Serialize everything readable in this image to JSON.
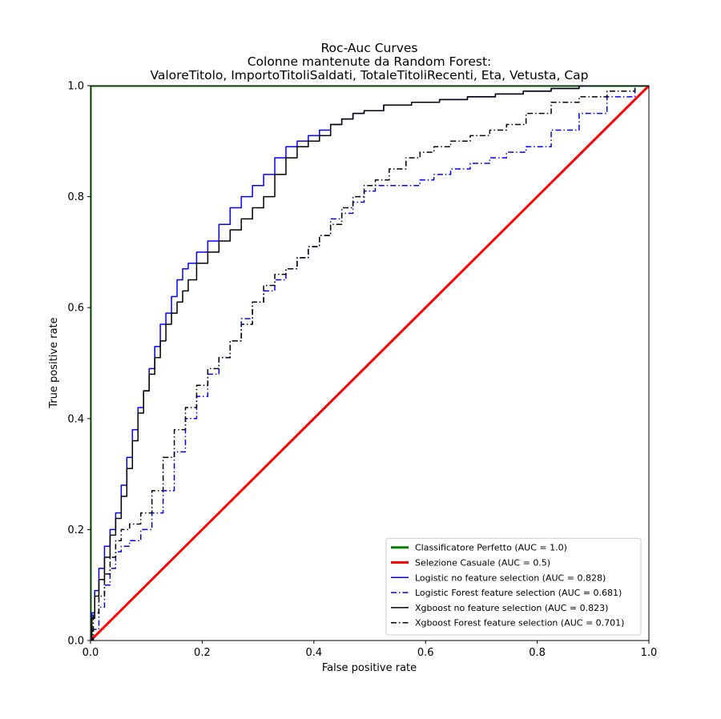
{
  "chart_data": {
    "type": "line",
    "title_lines": [
      "Roc-Auc Curves",
      "Colonne mantenute da Random Forest:",
      "ValoreTitolo, ImportoTitoliSaldati, TotaleTitoliRecenti, Eta, Vetusta, Cap"
    ],
    "xlabel": "False positive rate",
    "ylabel": "True positive rate",
    "xlim": [
      0,
      1
    ],
    "ylim": [
      0,
      1
    ],
    "xticks": [
      0,
      0.2,
      0.4,
      0.6,
      0.8,
      1.0
    ],
    "yticks": [
      0,
      0.2,
      0.4,
      0.6,
      0.8,
      1.0
    ],
    "xtick_labels": [
      "0.0",
      "0.2",
      "0.4",
      "0.6",
      "0.8",
      "1.0"
    ],
    "ytick_labels": [
      "0.0",
      "0.2",
      "0.4",
      "0.6",
      "0.8",
      "1.0"
    ],
    "grid": false,
    "legend_position": "lower-right",
    "series": [
      {
        "name": "Classificatore Perfetto (AUC = 1.0)",
        "color": "#008000",
        "style": "solid",
        "width": 3,
        "x": [
          0,
          0,
          1
        ],
        "y": [
          0,
          1,
          1
        ]
      },
      {
        "name": "Selezione Casuale (AUC = 0.5)",
        "color": "#ff0000",
        "style": "solid",
        "width": 3,
        "x": [
          0,
          1
        ],
        "y": [
          0,
          1
        ]
      },
      {
        "name": "Logistic no feature selection (AUC = 0.828)",
        "color": "#0000ff",
        "style": "solid",
        "width": 1.5,
        "x": [
          0,
          0.005,
          0.01,
          0.02,
          0.03,
          0.04,
          0.05,
          0.06,
          0.07,
          0.08,
          0.09,
          0.1,
          0.11,
          0.12,
          0.13,
          0.14,
          0.15,
          0.16,
          0.17,
          0.18,
          0.2,
          0.22,
          0.24,
          0.26,
          0.28,
          0.3,
          0.32,
          0.34,
          0.36,
          0.38,
          0.4,
          0.42,
          0.44,
          0.46,
          0.48,
          0.5,
          0.55,
          0.6,
          0.65,
          0.7,
          0.75,
          0.8,
          0.85,
          0.9
        ],
        "y": [
          0,
          0.05,
          0.09,
          0.13,
          0.17,
          0.2,
          0.23,
          0.28,
          0.33,
          0.38,
          0.42,
          0.45,
          0.49,
          0.53,
          0.57,
          0.59,
          0.62,
          0.65,
          0.67,
          0.68,
          0.7,
          0.72,
          0.75,
          0.78,
          0.8,
          0.82,
          0.84,
          0.87,
          0.89,
          0.9,
          0.91,
          0.92,
          0.93,
          0.94,
          0.95,
          0.955,
          0.965,
          0.97,
          0.975,
          0.98,
          0.985,
          0.99,
          0.995,
          1.0
        ]
      },
      {
        "name": "Logistic Forest feature selection (AUC = 0.681)",
        "color": "#0000ff",
        "style": "dashdot",
        "width": 1.5,
        "x": [
          0,
          0.01,
          0.02,
          0.03,
          0.04,
          0.05,
          0.06,
          0.08,
          0.1,
          0.12,
          0.14,
          0.16,
          0.18,
          0.2,
          0.22,
          0.24,
          0.26,
          0.28,
          0.3,
          0.32,
          0.34,
          0.36,
          0.38,
          0.4,
          0.42,
          0.44,
          0.46,
          0.48,
          0.5,
          0.52,
          0.55,
          0.58,
          0.6,
          0.63,
          0.66,
          0.7,
          0.73,
          0.76,
          0.8,
          0.85,
          0.9,
          0.95,
          1.0
        ],
        "y": [
          0,
          0.02,
          0.06,
          0.1,
          0.13,
          0.16,
          0.17,
          0.18,
          0.2,
          0.23,
          0.27,
          0.34,
          0.4,
          0.44,
          0.48,
          0.51,
          0.54,
          0.58,
          0.61,
          0.63,
          0.65,
          0.67,
          0.69,
          0.71,
          0.73,
          0.76,
          0.77,
          0.79,
          0.81,
          0.82,
          0.82,
          0.82,
          0.83,
          0.84,
          0.85,
          0.86,
          0.87,
          0.88,
          0.89,
          0.92,
          0.95,
          0.98,
          1.0
        ]
      },
      {
        "name": "Xgboost no feature selection (AUC = 0.823)",
        "color": "#000000",
        "style": "solid",
        "width": 1.5,
        "x": [
          0,
          0.005,
          0.01,
          0.02,
          0.03,
          0.04,
          0.05,
          0.06,
          0.07,
          0.08,
          0.09,
          0.1,
          0.11,
          0.12,
          0.13,
          0.14,
          0.15,
          0.16,
          0.17,
          0.18,
          0.2,
          0.22,
          0.24,
          0.26,
          0.28,
          0.3,
          0.32,
          0.34,
          0.36,
          0.38,
          0.4,
          0.42,
          0.44,
          0.46,
          0.48,
          0.5,
          0.55,
          0.6,
          0.65,
          0.7,
          0.75,
          0.8,
          0.85,
          0.9,
          0.95,
          1.0
        ],
        "y": [
          0,
          0.04,
          0.08,
          0.11,
          0.15,
          0.19,
          0.22,
          0.26,
          0.31,
          0.36,
          0.41,
          0.45,
          0.48,
          0.51,
          0.54,
          0.57,
          0.59,
          0.61,
          0.63,
          0.65,
          0.68,
          0.7,
          0.72,
          0.74,
          0.76,
          0.78,
          0.8,
          0.84,
          0.87,
          0.89,
          0.9,
          0.91,
          0.93,
          0.94,
          0.95,
          0.955,
          0.965,
          0.97,
          0.975,
          0.98,
          0.985,
          0.99,
          0.995,
          1.0,
          1.0,
          1.0
        ]
      },
      {
        "name": "Xgboost Forest feature selection (AUC = 0.701)",
        "color": "#000000",
        "style": "dashdot",
        "width": 1.5,
        "x": [
          0,
          0.01,
          0.02,
          0.03,
          0.04,
          0.05,
          0.06,
          0.08,
          0.1,
          0.12,
          0.14,
          0.16,
          0.18,
          0.2,
          0.22,
          0.24,
          0.26,
          0.28,
          0.3,
          0.32,
          0.34,
          0.36,
          0.38,
          0.4,
          0.42,
          0.44,
          0.46,
          0.48,
          0.5,
          0.52,
          0.55,
          0.58,
          0.6,
          0.63,
          0.66,
          0.7,
          0.73,
          0.76,
          0.8,
          0.85,
          0.9,
          0.95,
          1.0
        ],
        "y": [
          0,
          0.05,
          0.08,
          0.12,
          0.15,
          0.18,
          0.2,
          0.21,
          0.23,
          0.27,
          0.33,
          0.38,
          0.42,
          0.46,
          0.49,
          0.51,
          0.54,
          0.57,
          0.61,
          0.64,
          0.66,
          0.67,
          0.69,
          0.71,
          0.73,
          0.75,
          0.78,
          0.8,
          0.82,
          0.83,
          0.85,
          0.87,
          0.88,
          0.89,
          0.9,
          0.91,
          0.92,
          0.93,
          0.95,
          0.97,
          0.98,
          0.99,
          1.0
        ]
      }
    ]
  }
}
